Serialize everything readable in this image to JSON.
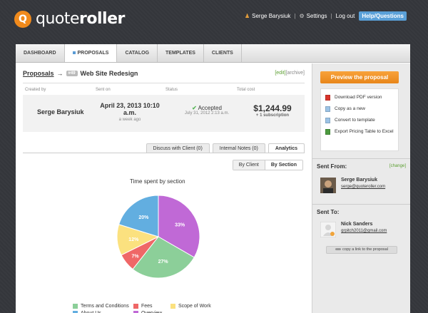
{
  "header": {
    "logo_mark": "Q",
    "logo_text_a": "quote",
    "logo_text_b": "roller",
    "user": "Serge Barysiuk",
    "settings": "Settings",
    "logout": "Log out",
    "help": "Help/Questions",
    "sep": "|"
  },
  "nav": {
    "tabs": [
      "DASHBOARD",
      "PROPOSALS",
      "CATALOG",
      "TEMPLATES",
      "CLIENTS"
    ]
  },
  "breadcrumb": {
    "root": "Proposals",
    "arrow": "→",
    "badge": "#49",
    "title": "Web Site Redesign"
  },
  "edit_links": {
    "edit": "[edit]",
    "archive": "[archive]"
  },
  "info": {
    "headers": [
      "Created by",
      "Sent on",
      "Status",
      "Total cost"
    ],
    "created_by": "Serge Barysiuk",
    "sent_on_line1": "April 23, 2013 10:10",
    "sent_on_line2": "a.m.",
    "sent_ago": "a week ago",
    "status": "Accepted",
    "status_check": "✔",
    "status_date": "July 31, 2012 2:13 a.m.",
    "total": "$1,244.99",
    "subscription": "+ 1 subscription"
  },
  "subtabs": [
    "Discuss with Client (0)",
    "Internal Notes (0)",
    "Analytics"
  ],
  "toggle": {
    "by_client": "By Client",
    "by_section": "By Section"
  },
  "chart_data": {
    "type": "pie",
    "title": "Time spent by section",
    "labels": [
      "Overview",
      "Terms and Conditions",
      "Fees",
      "Scope of Work",
      "About Us"
    ],
    "values": [
      33,
      27,
      7,
      12,
      20
    ],
    "colors": [
      "#c069d6",
      "#8ccf99",
      "#ef6767",
      "#fbe17f",
      "#62aee0"
    ],
    "legend": [
      {
        "label": "Terms and Conditions",
        "color": "#8ccf99"
      },
      {
        "label": "Fees",
        "color": "#ef6767"
      },
      {
        "label": "Scope of Work",
        "color": "#fbe17f"
      },
      {
        "label": "About Us",
        "color": "#62aee0"
      },
      {
        "label": "Overview",
        "color": "#c069d6"
      }
    ]
  },
  "sidebar": {
    "preview": "Preview the proposal",
    "actions": [
      {
        "label": "Download PDF version",
        "icon": "pdf-icon",
        "color": "#d9342b"
      },
      {
        "label": "Copy as a new",
        "icon": "copy-icon",
        "color": "#9cc3e6"
      },
      {
        "label": "Convert to template",
        "icon": "template-icon",
        "color": "#9cc3e6"
      },
      {
        "label": "Export Pricing Table to Excel",
        "icon": "excel-icon",
        "color": "#4c9a3f"
      }
    ],
    "sent_from": "Sent From:",
    "change": "[change]",
    "from_name": "Serge Barysiuk",
    "from_email": "serge@quoteroller.com",
    "sent_to": "Sent To:",
    "to_name": "Nick Sanders",
    "to_email": "qrpitch2011@gmail.com",
    "copy_link": "copy a link to the proposal"
  }
}
